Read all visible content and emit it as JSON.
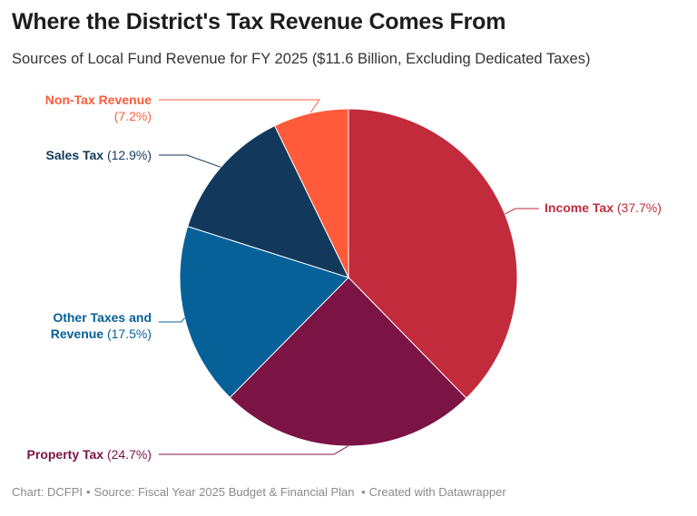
{
  "header": {
    "title": "Where the District's Tax Revenue Comes From",
    "subtitle": "Sources of Local Fund Revenue for FY 2025 ($11.6 Billion, Excluding Dedicated Taxes)"
  },
  "chart_data": {
    "type": "pie",
    "title": "Where the District's Tax Revenue Comes From",
    "subtitle": "Sources of Local Fund Revenue for FY 2025 ($11.6 Billion, Excluding Dedicated Taxes)",
    "slices": [
      {
        "label": "Income Tax",
        "value": 37.7,
        "display": "(37.7%)",
        "color": "#c12b3b"
      },
      {
        "label": "Property Tax",
        "value": 24.7,
        "display": "(24.7%)",
        "color": "#7b1345"
      },
      {
        "label": "Other Taxes and Revenue",
        "label_lines": [
          "Other Taxes and",
          "Revenue"
        ],
        "value": 17.5,
        "display": "(17.5%)",
        "color": "#066199"
      },
      {
        "label": "Sales Tax",
        "value": 12.9,
        "display": "(12.9%)",
        "color": "#12385c"
      },
      {
        "label": "Non-Tax Revenue",
        "value": 7.2,
        "display": "(7.2%)",
        "color": "#ff5b3a"
      }
    ],
    "start_angle": "12 o'clock",
    "direction": "clockwise",
    "legend": "none (direct labels)"
  },
  "footer": {
    "credit": "Chart: DCFPI",
    "source": "Source: Fiscal Year 2025 Budget & Financial Plan",
    "created": "Created with Datawrapper"
  }
}
